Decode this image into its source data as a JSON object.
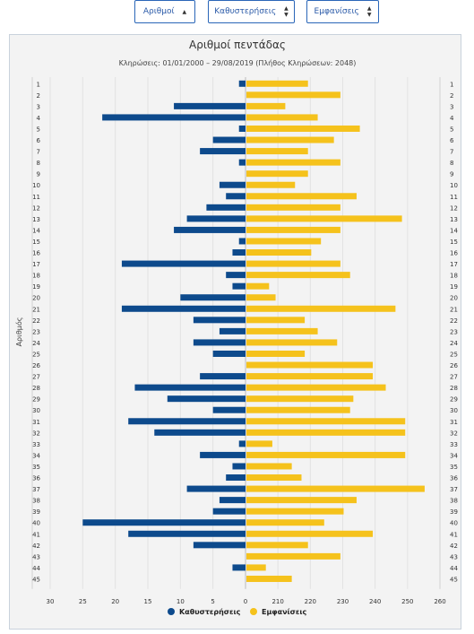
{
  "controls": {
    "numbers_label": "Αριθμοί",
    "delays_label": "Καθυστερήσεις",
    "appearances_label": "Εμφανίσεις"
  },
  "colors": {
    "delays": "#0d4a8c",
    "appearances": "#f5c21c",
    "panel_bg": "#f3f3f3",
    "button_border": "#2a66b8"
  },
  "chart_data": {
    "type": "bar",
    "orientation": "horizontal-diverging",
    "title": "Αριθμοί πεντάδας",
    "subtitle": "Κληρώσεις: 01/01/2000 – 29/08/2019 (Πλήθος Κληρώσεων: 2048)",
    "ylabel": "Αριθμός",
    "categories": [
      "1",
      "2",
      "3",
      "4",
      "5",
      "6",
      "7",
      "8",
      "9",
      "10",
      "11",
      "12",
      "13",
      "14",
      "15",
      "16",
      "17",
      "18",
      "19",
      "20",
      "21",
      "22",
      "23",
      "24",
      "25",
      "26",
      "27",
      "28",
      "29",
      "30",
      "31",
      "32",
      "33",
      "34",
      "35",
      "36",
      "37",
      "38",
      "39",
      "40",
      "41",
      "42",
      "43",
      "44",
      "45"
    ],
    "left_axis_ticks": [
      "30",
      "25",
      "20",
      "15",
      "10",
      "5",
      "0"
    ],
    "right_axis_ticks": [
      "210",
      "220",
      "230",
      "240",
      "250",
      "260"
    ],
    "left_axis_range": [
      0,
      30
    ],
    "right_axis_range": [
      200,
      260
    ],
    "grid": true,
    "legend_position": "bottom",
    "series": [
      {
        "name": "Καθυστερήσεις",
        "values": [
          1,
          0,
          11,
          22,
          1,
          5,
          7,
          1,
          0,
          4,
          3,
          6,
          9,
          11,
          1,
          2,
          19,
          3,
          2,
          10,
          19,
          8,
          4,
          8,
          5,
          0,
          7,
          17,
          12,
          5,
          18,
          14,
          1,
          7,
          2,
          3,
          9,
          4,
          5,
          25,
          18,
          8,
          0,
          2,
          0
        ]
      },
      {
        "name": "Εμφανίσεις",
        "values": [
          219,
          229,
          212,
          222,
          235,
          227,
          219,
          229,
          219,
          215,
          234,
          229,
          248,
          229,
          223,
          220,
          229,
          232,
          207,
          209,
          246,
          218,
          222,
          228,
          218,
          239,
          239,
          243,
          233,
          232,
          249,
          249,
          208,
          249,
          214,
          217,
          255,
          234,
          230,
          224,
          239,
          219,
          229,
          206,
          214
        ]
      }
    ]
  }
}
